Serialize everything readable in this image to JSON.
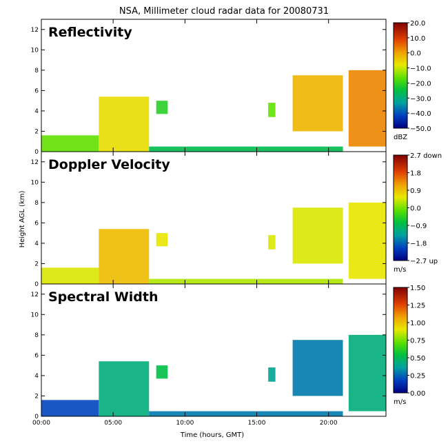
{
  "title": "NSA, Millimeter cloud radar data for 20080731",
  "xlabel": "Time (hours, GMT)",
  "ylabel": "Height AGL (km)",
  "xticks": [
    "00:00",
    "05:00",
    "10:00",
    "15:00",
    "20:00"
  ],
  "chart_data": [
    {
      "type": "heatmap",
      "title": "Reflectivity",
      "xlim": [
        0,
        24
      ],
      "ylim": [
        0,
        13
      ],
      "yticks": [
        "0",
        "2",
        "4",
        "6",
        "8",
        "10",
        "12"
      ],
      "colorbar": {
        "range": [
          -50,
          20
        ],
        "unit": "dBZ",
        "labels": [
          "20.0",
          "10.0",
          "0.0",
          "−10.0",
          "−20.0",
          "−30.0",
          "−40.0",
          "−50.0"
        ]
      },
      "echo_regions": [
        {
          "x": [
            0.0,
            4.0
          ],
          "base_km": 0.0,
          "top_km": 1.6,
          "value": -15
        },
        {
          "x": [
            4.0,
            7.5
          ],
          "base_km": 0.0,
          "top_km": 5.4,
          "value": -5
        },
        {
          "x": [
            7.5,
            21.0
          ],
          "base_km": 0.0,
          "top_km": 0.5,
          "value": -25
        },
        {
          "x": [
            8.0,
            8.8
          ],
          "base_km": 3.7,
          "top_km": 5.0,
          "value": -20
        },
        {
          "x": [
            15.8,
            16.3
          ],
          "base_km": 3.4,
          "top_km": 4.8,
          "value": -15
        },
        {
          "x": [
            17.5,
            21.0
          ],
          "base_km": 2.0,
          "top_km": 7.5,
          "value": 0
        },
        {
          "x": [
            21.4,
            24.0
          ],
          "base_km": 0.5,
          "top_km": 8.0,
          "value": 5
        }
      ]
    },
    {
      "type": "heatmap",
      "title": "Doppler Velocity",
      "xlim": [
        0,
        24
      ],
      "ylim": [
        0,
        13
      ],
      "yticks": [
        "0",
        "2",
        "4",
        "6",
        "8",
        "10",
        "12"
      ],
      "colorbar": {
        "range": [
          -2.7,
          2.7
        ],
        "unit": "m/s",
        "labels": [
          "2.7 down",
          "1.8",
          "0.9",
          "0.0",
          "−0.9",
          "−1.8",
          "−2.7 up"
        ]
      },
      "echo_regions": [
        {
          "x": [
            0.0,
            4.0
          ],
          "base_km": 0.0,
          "top_km": 1.6,
          "value": 0.6
        },
        {
          "x": [
            4.0,
            7.5
          ],
          "base_km": 0.0,
          "top_km": 5.4,
          "value": 1.1
        },
        {
          "x": [
            7.5,
            21.0
          ],
          "base_km": 0.0,
          "top_km": 0.5,
          "value": 0.4
        },
        {
          "x": [
            8.0,
            8.8
          ],
          "base_km": 3.7,
          "top_km": 5.0,
          "value": 0.7
        },
        {
          "x": [
            15.8,
            16.3
          ],
          "base_km": 3.4,
          "top_km": 4.8,
          "value": 0.6
        },
        {
          "x": [
            17.5,
            21.0
          ],
          "base_km": 2.0,
          "top_km": 7.5,
          "value": 0.6
        },
        {
          "x": [
            21.4,
            24.0
          ],
          "base_km": 0.5,
          "top_km": 8.0,
          "value": 0.7
        }
      ]
    },
    {
      "type": "heatmap",
      "title": "Spectral Width",
      "xlim": [
        0,
        24
      ],
      "ylim": [
        0,
        13
      ],
      "yticks": [
        "0",
        "2",
        "4",
        "6",
        "8",
        "10",
        "12"
      ],
      "colorbar": {
        "range": [
          0,
          1.5
        ],
        "unit": "m/s",
        "labels": [
          "1.50",
          "1.25",
          "1.00",
          "0.75",
          "0.50",
          "0.25",
          "0.00"
        ]
      },
      "echo_regions": [
        {
          "x": [
            0.0,
            4.0
          ],
          "base_km": 0.0,
          "top_km": 1.6,
          "value": 0.2
        },
        {
          "x": [
            4.0,
            7.5
          ],
          "base_km": 0.0,
          "top_km": 5.4,
          "value": 0.45
        },
        {
          "x": [
            7.5,
            21.0
          ],
          "base_km": 0.0,
          "top_km": 0.5,
          "value": 0.3
        },
        {
          "x": [
            8.0,
            8.8
          ],
          "base_km": 3.7,
          "top_km": 5.0,
          "value": 0.55
        },
        {
          "x": [
            15.8,
            16.3
          ],
          "base_km": 3.4,
          "top_km": 4.8,
          "value": 0.4
        },
        {
          "x": [
            17.5,
            21.0
          ],
          "base_km": 2.0,
          "top_km": 7.5,
          "value": 0.3
        },
        {
          "x": [
            21.4,
            24.0
          ],
          "base_km": 0.5,
          "top_km": 8.0,
          "value": 0.45
        }
      ]
    }
  ]
}
